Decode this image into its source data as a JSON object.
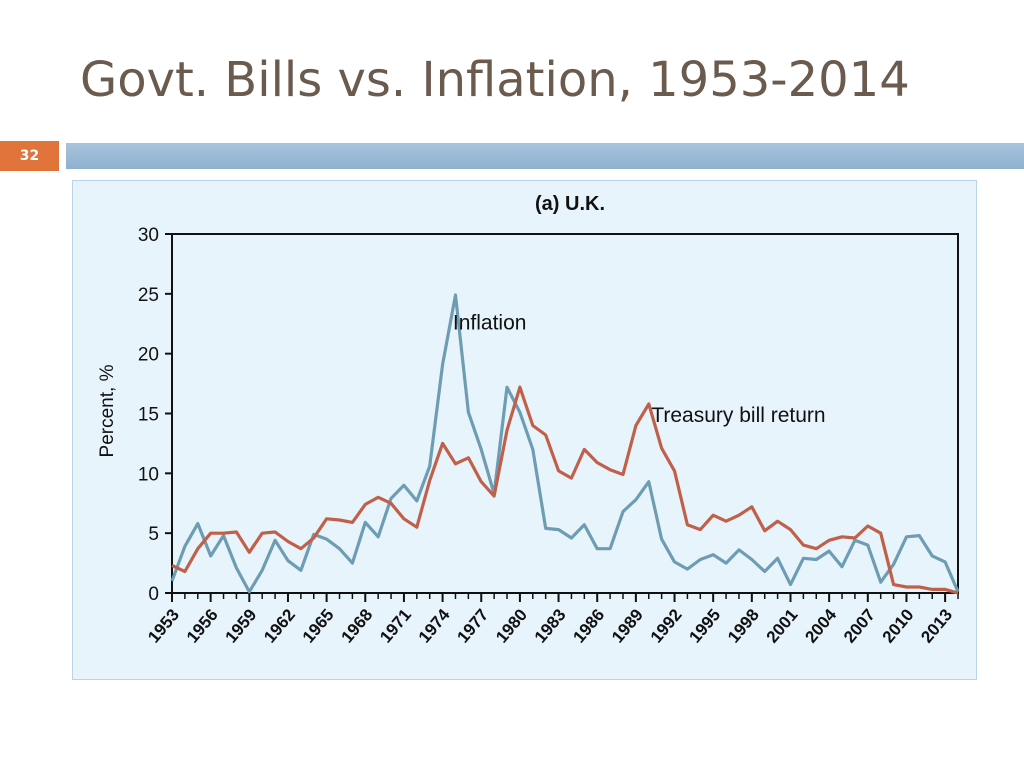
{
  "slide": {
    "title": "Govt. Bills vs. Inflation, 1953-2014",
    "number": "32",
    "accent_color": "#e0743a",
    "bar_color": "#9dbcd8"
  },
  "chart_data": {
    "type": "line",
    "title": "(a) U.K.",
    "xlabel": "",
    "ylabel": "Percent, %",
    "ylim": [
      0,
      30
    ],
    "yticks": [
      0,
      5,
      10,
      15,
      20,
      25,
      30
    ],
    "xlim": [
      1953,
      2014
    ],
    "xticks": [
      1953,
      1956,
      1959,
      1962,
      1965,
      1968,
      1971,
      1974,
      1977,
      1980,
      1983,
      1986,
      1989,
      1992,
      1995,
      1998,
      2001,
      2004,
      2007,
      2010,
      2013
    ],
    "grid": false,
    "legend": "inline labels",
    "x": [
      1953,
      1954,
      1955,
      1956,
      1957,
      1958,
      1959,
      1960,
      1961,
      1962,
      1963,
      1964,
      1965,
      1966,
      1967,
      1968,
      1969,
      1970,
      1971,
      1972,
      1973,
      1974,
      1975,
      1976,
      1977,
      1978,
      1979,
      1980,
      1981,
      1982,
      1983,
      1984,
      1985,
      1986,
      1987,
      1988,
      1989,
      1990,
      1991,
      1992,
      1993,
      1994,
      1995,
      1996,
      1997,
      1998,
      1999,
      2000,
      2001,
      2002,
      2003,
      2004,
      2005,
      2006,
      2007,
      2008,
      2009,
      2010,
      2011,
      2012,
      2013,
      2014
    ],
    "series": [
      {
        "name": "Inflation",
        "color": "#6e9db3",
        "values": [
          1.0,
          3.9,
          5.8,
          3.1,
          4.8,
          2.1,
          0.1,
          1.9,
          4.4,
          2.7,
          1.9,
          4.9,
          4.5,
          3.7,
          2.5,
          5.9,
          4.7,
          7.9,
          9.0,
          7.7,
          10.6,
          19.1,
          24.9,
          15.1,
          12.0,
          8.3,
          17.2,
          15.1,
          12.0,
          5.4,
          5.3,
          4.6,
          5.7,
          3.7,
          3.7,
          6.8,
          7.8,
          9.3,
          4.5,
          2.6,
          2.0,
          2.8,
          3.2,
          2.5,
          3.6,
          2.8,
          1.8,
          2.9,
          0.7,
          2.9,
          2.8,
          3.5,
          2.2,
          4.4,
          4.0,
          0.9,
          2.4,
          4.7,
          4.8,
          3.1,
          2.6,
          0.1
        ]
      },
      {
        "name": "Treasury bill return",
        "color": "#c1604a",
        "values": [
          2.3,
          1.8,
          3.7,
          5.0,
          5.0,
          5.1,
          3.4,
          5.0,
          5.1,
          4.3,
          3.7,
          4.6,
          6.2,
          6.1,
          5.9,
          7.4,
          8.0,
          7.5,
          6.2,
          5.5,
          9.4,
          12.5,
          10.8,
          11.3,
          9.3,
          8.1,
          13.6,
          17.2,
          14.0,
          13.2,
          10.2,
          9.6,
          12.0,
          10.9,
          10.3,
          9.9,
          14.0,
          15.8,
          12.1,
          10.2,
          5.7,
          5.3,
          6.5,
          6.0,
          6.5,
          7.2,
          5.2,
          6.0,
          5.3,
          4.0,
          3.7,
          4.4,
          4.7,
          4.6,
          5.6,
          5.0,
          0.7,
          0.5,
          0.5,
          0.3,
          0.3,
          0.0
        ]
      }
    ]
  }
}
